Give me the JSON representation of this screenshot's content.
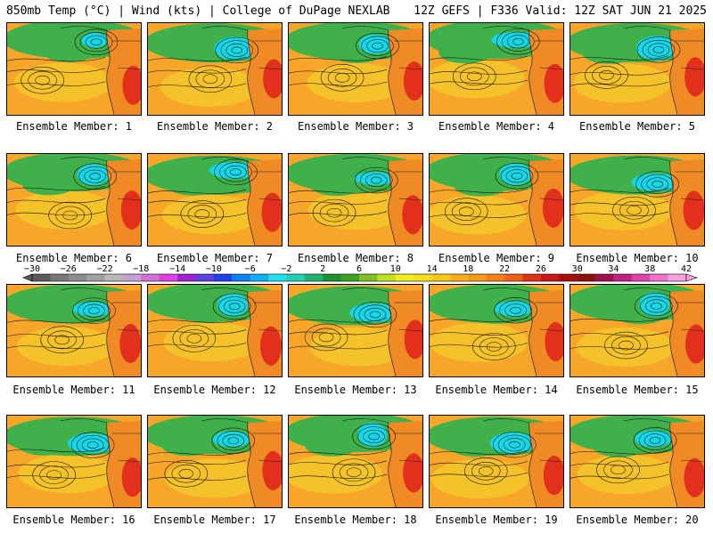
{
  "header": {
    "left": "850mb Temp (°C) | Wind (kts) | College of DuPage NEXLAB",
    "right": "12Z GEFS | F336 Valid: 12Z SAT JUN 21 2025"
  },
  "caption_prefix": "Ensemble Member: ",
  "members": [
    1,
    2,
    3,
    4,
    5,
    6,
    7,
    8,
    9,
    10,
    11,
    12,
    13,
    14,
    15,
    16,
    17,
    18,
    19,
    20
  ],
  "colorbar": {
    "labels": [
      "−30",
      "−26",
      "−22",
      "−18",
      "−14",
      "−10",
      "−6",
      "−2",
      "2",
      "6",
      "10",
      "14",
      "18",
      "22",
      "26",
      "30",
      "34",
      "38",
      "42"
    ],
    "colors": [
      "#5a5a5a",
      "#787878",
      "#8c8c8c",
      "#a0a0a0",
      "#b8b8b8",
      "#c8a0d8",
      "#d070d8",
      "#e040e0",
      "#a020d0",
      "#6040e0",
      "#2040f0",
      "#1080f0",
      "#10b0f0",
      "#20e0f0",
      "#20d0b0",
      "#20b070",
      "#209030",
      "#40a020",
      "#80c020",
      "#c0e020",
      "#f0f020",
      "#f8e018",
      "#f8c818",
      "#f8b018",
      "#f89818",
      "#f88018",
      "#f06018",
      "#e03018",
      "#c81818",
      "#a81010",
      "#901010",
      "#a01050",
      "#c02080",
      "#e040b0",
      "#f070d0",
      "#f8a0e0"
    ]
  },
  "colors": {
    "ocean": "#f7a62a",
    "subtropic": "#f5c52a",
    "cool": "#3fb04a",
    "cold": "#14d8e8",
    "hot": "#e3301c",
    "land": "#f08a24"
  }
}
